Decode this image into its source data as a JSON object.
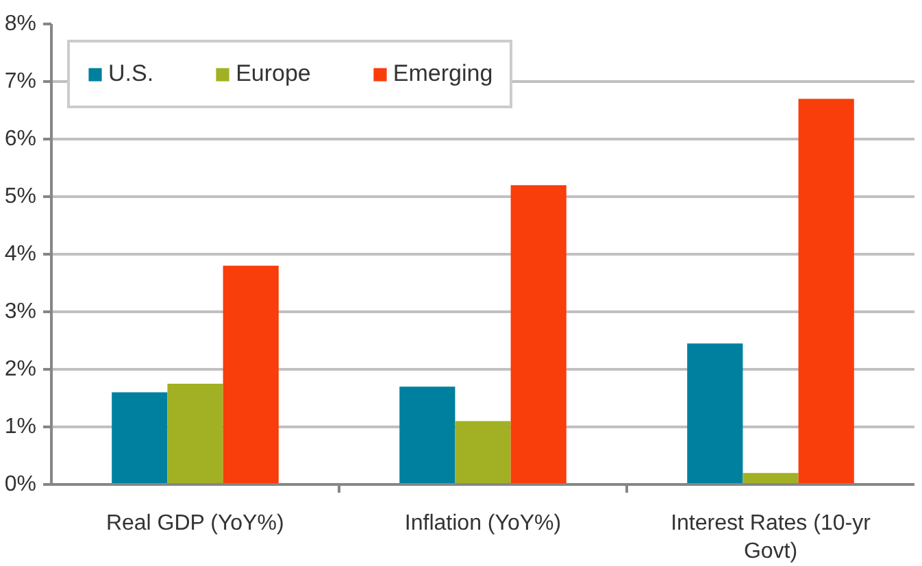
{
  "chart_data": {
    "type": "bar",
    "categories": [
      "Real GDP (YoY%)",
      "Inflation (YoY%)",
      "Interest Rates (10-yr Govt)"
    ],
    "series": [
      {
        "name": "U.S.",
        "color": "#00809f",
        "values": [
          1.6,
          1.7,
          2.45
        ]
      },
      {
        "name": "Europe",
        "color": "#a2b123",
        "values": [
          1.75,
          1.1,
          0.2
        ]
      },
      {
        "name": "Emerging",
        "color": "#f93d0b",
        "values": [
          3.8,
          5.2,
          6.7
        ]
      }
    ],
    "ylim": [
      0,
      8
    ],
    "yticks": [
      {
        "value": 0,
        "label": "0%"
      },
      {
        "value": 1,
        "label": "1%"
      },
      {
        "value": 2,
        "label": "2%"
      },
      {
        "value": 3,
        "label": "3%"
      },
      {
        "value": 4,
        "label": "4%"
      },
      {
        "value": 5,
        "label": "5%"
      },
      {
        "value": 6,
        "label": "6%"
      },
      {
        "value": 7,
        "label": "7%"
      },
      {
        "value": 8,
        "label": "8%"
      }
    ],
    "grid": "y",
    "legend": "top left"
  }
}
